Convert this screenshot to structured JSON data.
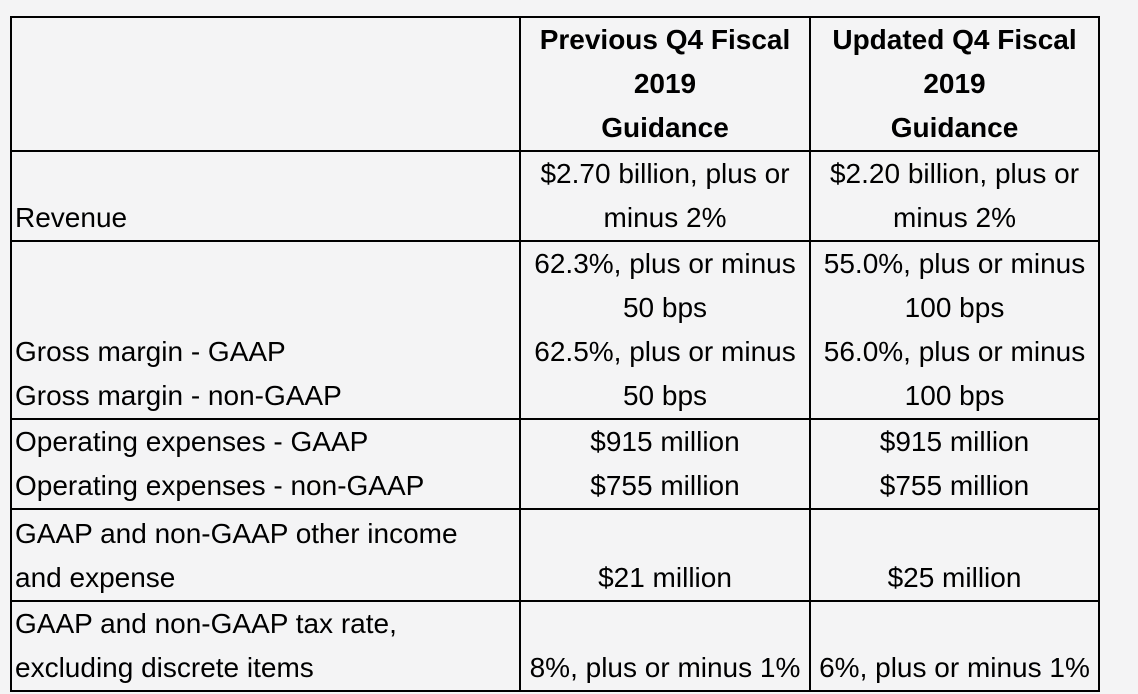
{
  "table": {
    "columns": {
      "metric": "",
      "previous": "Previous Q4 Fiscal\n2019\nGuidance",
      "updated": "Updated Q4 Fiscal\n2019\nGuidance"
    },
    "rows": [
      {
        "metric": "Revenue",
        "previous": "$2.70 billion, plus or\nminus 2%",
        "updated": "$2.20 billion, plus or\nminus 2%"
      },
      {
        "metric": "Gross margin - GAAP\nGross margin - non-GAAP",
        "previous": "62.3%, plus or minus\n50 bps\n62.5%, plus or minus\n50 bps",
        "updated": "55.0%, plus or minus\n100 bps\n56.0%, plus or minus\n100 bps"
      },
      {
        "metric": "Operating expenses - GAAP\nOperating expenses - non-GAAP",
        "previous": "$915 million\n$755 million",
        "updated": "$915 million\n$755 million"
      },
      {
        "metric": "GAAP and non-GAAP other income\nand expense",
        "previous": "$21 million",
        "updated": "$25 million"
      },
      {
        "metric": "GAAP and non-GAAP tax rate,\nexcluding discrete items",
        "previous": "8%, plus or minus 1%",
        "updated": "6%, plus or minus 1%"
      }
    ]
  },
  "colors": {
    "background": "#f4f4f5",
    "border": "#000000",
    "text": "#000000"
  }
}
